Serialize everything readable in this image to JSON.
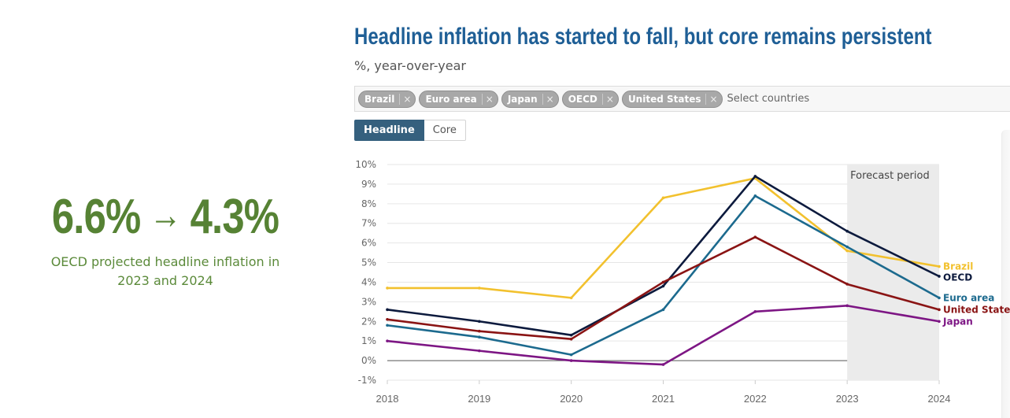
{
  "kpi": {
    "from_value": "6.6%",
    "arrow": "→",
    "to_value": "4.3%",
    "caption_line1": "OECD projected headline inflation in",
    "caption_line2": "2023 and 2024"
  },
  "header": {
    "title": "Headline inflation has started to fall, but core remains persistent",
    "subtitle": "%, year-over-year"
  },
  "country_selector": {
    "tags": [
      {
        "label": "Brazil",
        "remove_icon": "×"
      },
      {
        "label": "Euro area",
        "remove_icon": "×"
      },
      {
        "label": "Japan",
        "remove_icon": "×"
      },
      {
        "label": "OECD",
        "remove_icon": "×"
      },
      {
        "label": "United States",
        "remove_icon": "×"
      }
    ],
    "placeholder": "Select countries"
  },
  "toggle": {
    "options": [
      {
        "label": "Headline",
        "selected": true
      },
      {
        "label": "Core",
        "selected": false
      }
    ]
  },
  "chart_data": {
    "type": "line",
    "title": "Headline inflation has started to fall, but core remains persistent",
    "subtitle": "%, year-over-year",
    "xlabel": "",
    "ylabel": "",
    "x": [
      2018,
      2019,
      2020,
      2021,
      2022,
      2023,
      2024
    ],
    "x_tick_labels": [
      "2018",
      "2019",
      "2020",
      "2021",
      "2022",
      "2023",
      "2024"
    ],
    "y_tick_labels": [
      "10%",
      "9%",
      "8%",
      "7%",
      "6%",
      "5%",
      "4%",
      "3%",
      "2%",
      "1%",
      "0%",
      "-1%"
    ],
    "ylim": [
      -1,
      10
    ],
    "grid": true,
    "zero_line": true,
    "annotation": {
      "label": "Forecast period",
      "x_start": 2023,
      "x_end": 2024
    },
    "legend": "direct-labels-right",
    "series": [
      {
        "name": "Brazil",
        "label": "Brazil",
        "color": "#f2c12e",
        "values": [
          3.7,
          3.7,
          3.2,
          8.3,
          9.3,
          5.6,
          4.8
        ]
      },
      {
        "name": "OECD",
        "label": "OECD",
        "color": "#0c1a3d",
        "values": [
          2.6,
          2.0,
          1.3,
          3.8,
          9.4,
          6.6,
          4.3
        ]
      },
      {
        "name": "Euro area",
        "label": "Euro area",
        "color": "#1c6a8e",
        "values": [
          1.8,
          1.2,
          0.3,
          2.6,
          8.4,
          5.8,
          3.2
        ]
      },
      {
        "name": "United States",
        "label": "United State",
        "color": "#8a1414",
        "values": [
          2.1,
          1.5,
          1.1,
          4.0,
          6.3,
          3.9,
          2.6
        ]
      },
      {
        "name": "Japan",
        "label": "Japan",
        "color": "#7d1684",
        "values": [
          1.0,
          0.5,
          0.0,
          -0.2,
          2.5,
          2.8,
          2.0
        ]
      }
    ]
  }
}
